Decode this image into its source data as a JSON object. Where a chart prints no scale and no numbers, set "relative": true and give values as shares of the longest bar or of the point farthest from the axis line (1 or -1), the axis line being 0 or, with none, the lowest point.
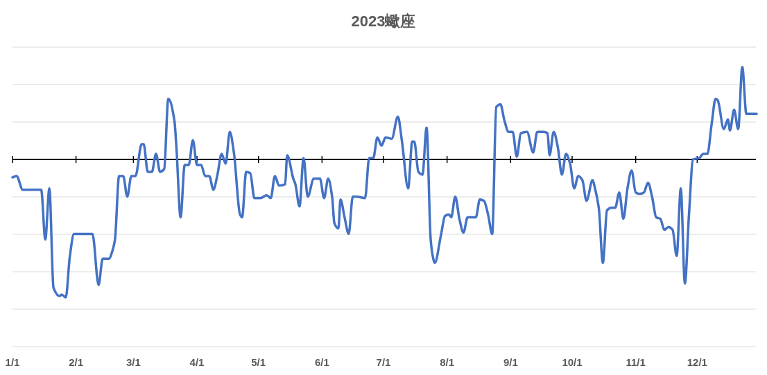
{
  "chart_data": {
    "type": "line",
    "title": "2023蠍座",
    "relative": true,
    "grid": "y",
    "line_style": "solid",
    "marker": "none",
    "x": [
      "--01-01",
      "--01-03",
      "--01-06",
      "--01-15",
      "--01-17",
      "--01-19",
      "--01-21",
      "--01-24",
      "--01-25",
      "--01-27",
      "--01-29",
      "--01-31",
      "--02-02",
      "--02-09",
      "--02-12",
      "--02-14",
      "--02-17",
      "--02-19",
      "--02-20",
      "--02-22",
      "--02-24",
      "--02-26",
      "--02-28",
      "--03-02",
      "--03-05",
      "--03-06",
      "--03-08",
      "--03-10",
      "--03-12",
      "--03-14",
      "--03-16",
      "--03-18",
      "--03-21",
      "--03-22",
      "--03-24",
      "--03-26",
      "--03-28",
      "--03-30",
      "--04-01",
      "--04-03",
      "--04-05",
      "--04-07",
      "--04-09",
      "--04-11",
      "--04-13",
      "--04-15",
      "--04-17",
      "--04-19",
      "--04-22",
      "--04-23",
      "--04-25",
      "--04-27",
      "--04-29",
      "--05-02",
      "--05-05",
      "--05-07",
      "--05-09",
      "--05-11",
      "--05-14",
      "--05-15",
      "--05-18",
      "--05-19",
      "--05-21",
      "--05-23",
      "--05-25",
      "--05-28",
      "--05-30",
      "--05-31",
      "--06-02",
      "--06-04",
      "--06-06",
      "--06-07",
      "--06-09",
      "--06-10",
      "--06-12",
      "--06-14",
      "--06-16",
      "--06-18",
      "--06-22",
      "--06-24",
      "--06-26",
      "--06-28",
      "--06-30",
      "--07-02",
      "--07-05",
      "--07-08",
      "--07-10",
      "--07-13",
      "--07-15",
      "--07-16",
      "--07-18",
      "--07-20",
      "--07-22",
      "--07-24",
      "--07-25",
      "--07-26",
      "--07-29",
      "--07-31",
      "--08-02",
      "--08-03",
      "--08-05",
      "--08-07",
      "--08-09",
      "--08-11",
      "--08-13",
      "--08-15",
      "--08-17",
      "--08-19",
      "--08-21",
      "--08-23",
      "--08-25",
      "--08-27",
      "--08-29",
      "--08-31",
      "--09-02",
      "--09-04",
      "--09-06",
      "--09-09",
      "--09-12",
      "--09-14",
      "--09-17",
      "--09-19",
      "--09-20",
      "--09-22",
      "--09-24",
      "--09-26",
      "--09-28",
      "--09-30",
      "--10-02",
      "--10-04",
      "--10-06",
      "--10-08",
      "--10-11",
      "--10-12",
      "--10-14",
      "--10-16",
      "--10-18",
      "--10-20",
      "--10-22",
      "--10-24",
      "--10-26",
      "--10-28",
      "--10-30",
      "--11-01",
      "--11-03",
      "--11-05",
      "--11-07",
      "--11-09",
      "--11-11",
      "--11-13",
      "--11-15",
      "--11-17",
      "--11-19",
      "--11-21",
      "--11-23",
      "--11-25",
      "--11-27",
      "--11-29",
      "--12-02",
      "--12-04",
      "--12-06",
      "--12-08",
      "--12-10",
      "--12-11",
      "--12-14",
      "--12-16",
      "--12-17",
      "--12-19",
      "--12-21",
      "--12-23",
      "--12-25",
      "--12-27",
      "--12-30"
    ],
    "series": [
      {
        "color": "#4472c4",
        "values": [
          -0.13,
          -0.12,
          -0.22,
          -0.22,
          -0.58,
          -0.21,
          -0.93,
          -0.99,
          -0.98,
          -1.0,
          -0.7,
          -0.54,
          -0.54,
          -0.54,
          -0.91,
          -0.72,
          -0.72,
          -0.65,
          -0.58,
          -0.12,
          -0.12,
          -0.27,
          -0.12,
          -0.12,
          0.11,
          0.11,
          -0.09,
          -0.09,
          0.04,
          -0.09,
          -0.07,
          0.44,
          0.28,
          0.08,
          -0.42,
          -0.04,
          -0.04,
          0.14,
          -0.04,
          -0.04,
          -0.12,
          -0.12,
          -0.22,
          -0.11,
          0.04,
          -0.03,
          0.2,
          0.05,
          -0.4,
          -0.42,
          -0.09,
          -0.1,
          -0.28,
          -0.28,
          -0.26,
          -0.28,
          -0.12,
          -0.19,
          -0.18,
          0.03,
          -0.14,
          -0.18,
          -0.34,
          0.01,
          -0.27,
          -0.14,
          -0.14,
          -0.14,
          -0.28,
          -0.14,
          -0.28,
          -0.46,
          -0.5,
          -0.29,
          -0.42,
          -0.54,
          -0.27,
          -0.27,
          -0.28,
          0.01,
          0.01,
          0.16,
          0.1,
          0.16,
          0.15,
          0.31,
          0.13,
          -0.21,
          0.13,
          0.13,
          -0.09,
          -0.11,
          0.23,
          -0.58,
          -0.7,
          -0.75,
          -0.55,
          -0.41,
          -0.4,
          -0.42,
          -0.27,
          -0.43,
          -0.53,
          -0.42,
          -0.42,
          -0.42,
          -0.29,
          -0.3,
          -0.4,
          -0.54,
          0.38,
          0.4,
          0.28,
          0.2,
          0.2,
          0.02,
          0.19,
          0.2,
          0.05,
          0.2,
          0.2,
          0.19,
          0.03,
          0.2,
          0.09,
          -0.11,
          0.04,
          -0.03,
          -0.21,
          -0.12,
          -0.15,
          -0.3,
          -0.15,
          -0.2,
          -0.35,
          -0.75,
          -0.37,
          -0.35,
          -0.35,
          -0.24,
          -0.43,
          -0.21,
          -0.08,
          -0.24,
          -0.25,
          -0.24,
          -0.17,
          -0.27,
          -0.42,
          -0.43,
          -0.51,
          -0.49,
          -0.51,
          -0.7,
          -0.21,
          -0.9,
          -0.4,
          0.0,
          0.01,
          0.04,
          0.04,
          0.25,
          0.44,
          0.43,
          0.22,
          0.29,
          0.21,
          0.36,
          0.22,
          0.67,
          0.33,
          0.33,
          0.33
        ]
      }
    ],
    "xlim": [
      "--01-01",
      "--12-31"
    ],
    "xticks": [
      {
        "value": "--01-01",
        "label": "1/1"
      },
      {
        "value": "--02-01",
        "label": "2/1"
      },
      {
        "value": "--03-01",
        "label": "3/1"
      },
      {
        "value": "--04-01",
        "label": "4/1"
      },
      {
        "value": "--05-01",
        "label": "5/1"
      },
      {
        "value": "--06-01",
        "label": "6/1"
      },
      {
        "value": "--07-01",
        "label": "7/1"
      },
      {
        "value": "--08-01",
        "label": "8/1"
      },
      {
        "value": "--09-01",
        "label": "9/1"
      },
      {
        "value": "--10-01",
        "label": "10/1"
      },
      {
        "value": "--11-01",
        "label": "11/1"
      },
      {
        "value": "--12-01",
        "label": "12/1"
      }
    ]
  }
}
